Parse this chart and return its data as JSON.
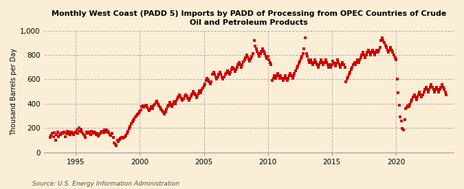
{
  "title": "Monthly West Coast (PADD 5) Imports by PADD of Processing from OPEC Countries of Crude\nOil and Petroleum Products",
  "ylabel": "Thousand Barrels per Day",
  "source": "Source: U.S. Energy Information Administration",
  "background_color": "#faefd6",
  "dot_color": "#cc0000",
  "marker_size": 9,
  "ylim": [
    0,
    1000
  ],
  "yticks": [
    0,
    200,
    400,
    600,
    800,
    1000
  ],
  "ytick_labels": [
    "0",
    "200",
    "400",
    "600",
    "800",
    "1,000"
  ],
  "xlim_start": 1992.5,
  "xlim_end": 2024.5,
  "xticks": [
    1995,
    2000,
    2005,
    2010,
    2015,
    2020
  ],
  "data": [
    [
      1993.0,
      120
    ],
    [
      1993.08,
      140
    ],
    [
      1993.17,
      155
    ],
    [
      1993.25,
      130
    ],
    [
      1993.33,
      160
    ],
    [
      1993.42,
      100
    ],
    [
      1993.5,
      145
    ],
    [
      1993.58,
      170
    ],
    [
      1993.67,
      130
    ],
    [
      1993.75,
      150
    ],
    [
      1993.83,
      145
    ],
    [
      1993.92,
      160
    ],
    [
      1994.0,
      155
    ],
    [
      1994.08,
      170
    ],
    [
      1994.17,
      130
    ],
    [
      1994.25,
      155
    ],
    [
      1994.33,
      175
    ],
    [
      1994.42,
      150
    ],
    [
      1994.5,
      165
    ],
    [
      1994.58,
      145
    ],
    [
      1994.67,
      170
    ],
    [
      1994.75,
      155
    ],
    [
      1994.83,
      145
    ],
    [
      1994.92,
      160
    ],
    [
      1995.0,
      170
    ],
    [
      1995.08,
      185
    ],
    [
      1995.17,
      155
    ],
    [
      1995.25,
      200
    ],
    [
      1995.33,
      175
    ],
    [
      1995.42,
      190
    ],
    [
      1995.5,
      165
    ],
    [
      1995.58,
      150
    ],
    [
      1995.67,
      140
    ],
    [
      1995.75,
      125
    ],
    [
      1995.83,
      165
    ],
    [
      1995.92,
      155
    ],
    [
      1996.0,
      155
    ],
    [
      1996.08,
      170
    ],
    [
      1996.17,
      145
    ],
    [
      1996.25,
      175
    ],
    [
      1996.33,
      155
    ],
    [
      1996.42,
      170
    ],
    [
      1996.5,
      160
    ],
    [
      1996.58,
      145
    ],
    [
      1996.67,
      155
    ],
    [
      1996.75,
      135
    ],
    [
      1996.83,
      145
    ],
    [
      1996.92,
      155
    ],
    [
      1997.0,
      165
    ],
    [
      1997.08,
      175
    ],
    [
      1997.17,
      160
    ],
    [
      1997.25,
      185
    ],
    [
      1997.33,
      165
    ],
    [
      1997.42,
      185
    ],
    [
      1997.5,
      175
    ],
    [
      1997.58,
      160
    ],
    [
      1997.67,
      145
    ],
    [
      1997.75,
      140
    ],
    [
      1997.83,
      155
    ],
    [
      1997.92,
      120
    ],
    [
      1998.0,
      75
    ],
    [
      1998.08,
      65
    ],
    [
      1998.17,
      55
    ],
    [
      1998.25,
      100
    ],
    [
      1998.33,
      90
    ],
    [
      1998.42,
      105
    ],
    [
      1998.5,
      115
    ],
    [
      1998.58,
      125
    ],
    [
      1998.67,
      115
    ],
    [
      1998.75,
      120
    ],
    [
      1998.83,
      130
    ],
    [
      1998.92,
      140
    ],
    [
      1999.0,
      155
    ],
    [
      1999.08,
      175
    ],
    [
      1999.17,
      195
    ],
    [
      1999.25,
      215
    ],
    [
      1999.33,
      235
    ],
    [
      1999.42,
      250
    ],
    [
      1999.5,
      265
    ],
    [
      1999.58,
      275
    ],
    [
      1999.67,
      290
    ],
    [
      1999.75,
      305
    ],
    [
      1999.83,
      315
    ],
    [
      1999.92,
      320
    ],
    [
      2000.0,
      335
    ],
    [
      2000.08,
      350
    ],
    [
      2000.17,
      375
    ],
    [
      2000.25,
      385
    ],
    [
      2000.33,
      370
    ],
    [
      2000.42,
      380
    ],
    [
      2000.5,
      390
    ],
    [
      2000.58,
      370
    ],
    [
      2000.67,
      355
    ],
    [
      2000.75,
      345
    ],
    [
      2000.83,
      360
    ],
    [
      2000.92,
      375
    ],
    [
      2001.0,
      360
    ],
    [
      2001.08,
      380
    ],
    [
      2001.17,
      395
    ],
    [
      2001.25,
      410
    ],
    [
      2001.33,
      420
    ],
    [
      2001.42,
      400
    ],
    [
      2001.5,
      385
    ],
    [
      2001.58,
      370
    ],
    [
      2001.67,
      355
    ],
    [
      2001.75,
      340
    ],
    [
      2001.83,
      330
    ],
    [
      2001.92,
      315
    ],
    [
      2002.0,
      330
    ],
    [
      2002.08,
      355
    ],
    [
      2002.17,
      375
    ],
    [
      2002.25,
      390
    ],
    [
      2002.33,
      410
    ],
    [
      2002.42,
      390
    ],
    [
      2002.5,
      375
    ],
    [
      2002.58,
      395
    ],
    [
      2002.67,
      415
    ],
    [
      2002.75,
      400
    ],
    [
      2002.83,
      420
    ],
    [
      2002.92,
      440
    ],
    [
      2003.0,
      455
    ],
    [
      2003.08,
      470
    ],
    [
      2003.17,
      460
    ],
    [
      2003.25,
      445
    ],
    [
      2003.33,
      425
    ],
    [
      2003.42,
      440
    ],
    [
      2003.5,
      460
    ],
    [
      2003.58,
      475
    ],
    [
      2003.67,
      460
    ],
    [
      2003.75,
      445
    ],
    [
      2003.83,
      430
    ],
    [
      2003.92,
      445
    ],
    [
      2004.0,
      460
    ],
    [
      2004.08,
      480
    ],
    [
      2004.17,
      500
    ],
    [
      2004.25,
      485
    ],
    [
      2004.33,
      470
    ],
    [
      2004.42,
      450
    ],
    [
      2004.5,
      465
    ],
    [
      2004.58,
      485
    ],
    [
      2004.67,
      505
    ],
    [
      2004.75,
      490
    ],
    [
      2004.83,
      510
    ],
    [
      2004.92,
      530
    ],
    [
      2005.0,
      545
    ],
    [
      2005.08,
      565
    ],
    [
      2005.17,
      590
    ],
    [
      2005.25,
      610
    ],
    [
      2005.33,
      595
    ],
    [
      2005.42,
      580
    ],
    [
      2005.5,
      565
    ],
    [
      2005.58,
      580
    ],
    [
      2005.67,
      640
    ],
    [
      2005.75,
      660
    ],
    [
      2005.83,
      640
    ],
    [
      2005.92,
      620
    ],
    [
      2006.0,
      600
    ],
    [
      2006.08,
      620
    ],
    [
      2006.17,
      640
    ],
    [
      2006.25,
      660
    ],
    [
      2006.33,
      640
    ],
    [
      2006.42,
      620
    ],
    [
      2006.5,
      605
    ],
    [
      2006.58,
      620
    ],
    [
      2006.67,
      640
    ],
    [
      2006.75,
      655
    ],
    [
      2006.83,
      670
    ],
    [
      2006.92,
      655
    ],
    [
      2007.0,
      640
    ],
    [
      2007.08,
      660
    ],
    [
      2007.17,
      680
    ],
    [
      2007.25,
      700
    ],
    [
      2007.33,
      685
    ],
    [
      2007.42,
      665
    ],
    [
      2007.5,
      680
    ],
    [
      2007.58,
      700
    ],
    [
      2007.67,
      720
    ],
    [
      2007.75,
      740
    ],
    [
      2007.83,
      720
    ],
    [
      2007.92,
      700
    ],
    [
      2008.0,
      720
    ],
    [
      2008.08,
      745
    ],
    [
      2008.17,
      760
    ],
    [
      2008.25,
      780
    ],
    [
      2008.33,
      800
    ],
    [
      2008.42,
      785
    ],
    [
      2008.5,
      765
    ],
    [
      2008.58,
      750
    ],
    [
      2008.67,
      770
    ],
    [
      2008.75,
      790
    ],
    [
      2008.83,
      810
    ],
    [
      2008.92,
      920
    ],
    [
      2009.0,
      875
    ],
    [
      2009.08,
      850
    ],
    [
      2009.17,
      830
    ],
    [
      2009.25,
      810
    ],
    [
      2009.33,
      790
    ],
    [
      2009.42,
      810
    ],
    [
      2009.5,
      830
    ],
    [
      2009.58,
      850
    ],
    [
      2009.67,
      830
    ],
    [
      2009.75,
      810
    ],
    [
      2009.83,
      790
    ],
    [
      2009.92,
      770
    ],
    [
      2010.0,
      790
    ],
    [
      2010.08,
      760
    ],
    [
      2010.17,
      740
    ],
    [
      2010.25,
      720
    ],
    [
      2010.33,
      590
    ],
    [
      2010.42,
      610
    ],
    [
      2010.5,
      630
    ],
    [
      2010.58,
      610
    ],
    [
      2010.67,
      630
    ],
    [
      2010.75,
      650
    ],
    [
      2010.83,
      630
    ],
    [
      2010.92,
      610
    ],
    [
      2011.0,
      630
    ],
    [
      2011.08,
      610
    ],
    [
      2011.17,
      590
    ],
    [
      2011.25,
      610
    ],
    [
      2011.33,
      630
    ],
    [
      2011.42,
      610
    ],
    [
      2011.5,
      590
    ],
    [
      2011.58,
      610
    ],
    [
      2011.67,
      630
    ],
    [
      2011.75,
      650
    ],
    [
      2011.83,
      630
    ],
    [
      2011.92,
      610
    ],
    [
      2012.0,
      630
    ],
    [
      2012.08,
      650
    ],
    [
      2012.17,
      670
    ],
    [
      2012.25,
      690
    ],
    [
      2012.33,
      710
    ],
    [
      2012.42,
      730
    ],
    [
      2012.5,
      750
    ],
    [
      2012.58,
      770
    ],
    [
      2012.67,
      790
    ],
    [
      2012.75,
      810
    ],
    [
      2012.83,
      850
    ],
    [
      2012.92,
      940
    ],
    [
      2013.0,
      810
    ],
    [
      2013.08,
      790
    ],
    [
      2013.17,
      760
    ],
    [
      2013.25,
      740
    ],
    [
      2013.33,
      760
    ],
    [
      2013.42,
      740
    ],
    [
      2013.5,
      720
    ],
    [
      2013.58,
      740
    ],
    [
      2013.67,
      760
    ],
    [
      2013.75,
      740
    ],
    [
      2013.83,
      720
    ],
    [
      2013.92,
      700
    ],
    [
      2014.0,
      720
    ],
    [
      2014.08,
      740
    ],
    [
      2014.17,
      760
    ],
    [
      2014.25,
      740
    ],
    [
      2014.33,
      720
    ],
    [
      2014.42,
      740
    ],
    [
      2014.5,
      760
    ],
    [
      2014.58,
      740
    ],
    [
      2014.67,
      720
    ],
    [
      2014.75,
      700
    ],
    [
      2014.83,
      720
    ],
    [
      2014.92,
      700
    ],
    [
      2015.0,
      720
    ],
    [
      2015.08,
      750
    ],
    [
      2015.17,
      730
    ],
    [
      2015.25,
      710
    ],
    [
      2015.33,
      730
    ],
    [
      2015.42,
      760
    ],
    [
      2015.5,
      740
    ],
    [
      2015.58,
      720
    ],
    [
      2015.67,
      700
    ],
    [
      2015.75,
      720
    ],
    [
      2015.83,
      740
    ],
    [
      2015.92,
      720
    ],
    [
      2016.0,
      700
    ],
    [
      2016.08,
      580
    ],
    [
      2016.17,
      600
    ],
    [
      2016.25,
      620
    ],
    [
      2016.33,
      640
    ],
    [
      2016.42,
      660
    ],
    [
      2016.5,
      680
    ],
    [
      2016.58,
      700
    ],
    [
      2016.67,
      720
    ],
    [
      2016.75,
      740
    ],
    [
      2016.83,
      720
    ],
    [
      2016.92,
      740
    ],
    [
      2017.0,
      760
    ],
    [
      2017.08,
      740
    ],
    [
      2017.17,
      760
    ],
    [
      2017.25,
      780
    ],
    [
      2017.33,
      800
    ],
    [
      2017.42,
      820
    ],
    [
      2017.5,
      800
    ],
    [
      2017.58,
      780
    ],
    [
      2017.67,
      800
    ],
    [
      2017.75,
      820
    ],
    [
      2017.83,
      840
    ],
    [
      2017.92,
      820
    ],
    [
      2018.0,
      800
    ],
    [
      2018.08,
      820
    ],
    [
      2018.17,
      840
    ],
    [
      2018.25,
      820
    ],
    [
      2018.33,
      800
    ],
    [
      2018.42,
      820
    ],
    [
      2018.5,
      840
    ],
    [
      2018.58,
      820
    ],
    [
      2018.67,
      840
    ],
    [
      2018.75,
      860
    ],
    [
      2018.83,
      920
    ],
    [
      2018.92,
      940
    ],
    [
      2019.0,
      920
    ],
    [
      2019.08,
      900
    ],
    [
      2019.17,
      880
    ],
    [
      2019.25,
      860
    ],
    [
      2019.33,
      840
    ],
    [
      2019.42,
      820
    ],
    [
      2019.5,
      840
    ],
    [
      2019.58,
      860
    ],
    [
      2019.67,
      840
    ],
    [
      2019.75,
      820
    ],
    [
      2019.83,
      800
    ],
    [
      2019.92,
      780
    ],
    [
      2020.0,
      760
    ],
    [
      2020.08,
      600
    ],
    [
      2020.17,
      490
    ],
    [
      2020.25,
      390
    ],
    [
      2020.33,
      290
    ],
    [
      2020.42,
      260
    ],
    [
      2020.5,
      195
    ],
    [
      2020.58,
      185
    ],
    [
      2020.67,
      270
    ],
    [
      2020.75,
      360
    ],
    [
      2020.83,
      370
    ],
    [
      2020.92,
      385
    ],
    [
      2021.0,
      375
    ],
    [
      2021.08,
      395
    ],
    [
      2021.17,
      415
    ],
    [
      2021.25,
      435
    ],
    [
      2021.33,
      455
    ],
    [
      2021.42,
      475
    ],
    [
      2021.5,
      455
    ],
    [
      2021.58,
      435
    ],
    [
      2021.67,
      455
    ],
    [
      2021.75,
      475
    ],
    [
      2021.83,
      495
    ],
    [
      2021.92,
      475
    ],
    [
      2022.0,
      455
    ],
    [
      2022.08,
      475
    ],
    [
      2022.17,
      495
    ],
    [
      2022.25,
      515
    ],
    [
      2022.33,
      535
    ],
    [
      2022.42,
      515
    ],
    [
      2022.5,
      495
    ],
    [
      2022.58,
      515
    ],
    [
      2022.67,
      535
    ],
    [
      2022.75,
      555
    ],
    [
      2022.83,
      535
    ],
    [
      2022.92,
      515
    ],
    [
      2023.0,
      495
    ],
    [
      2023.08,
      515
    ],
    [
      2023.17,
      535
    ],
    [
      2023.25,
      515
    ],
    [
      2023.33,
      495
    ],
    [
      2023.42,
      515
    ],
    [
      2023.5,
      535
    ],
    [
      2023.58,
      555
    ],
    [
      2023.67,
      535
    ],
    [
      2023.75,
      515
    ],
    [
      2023.83,
      495
    ],
    [
      2023.92,
      475
    ]
  ]
}
